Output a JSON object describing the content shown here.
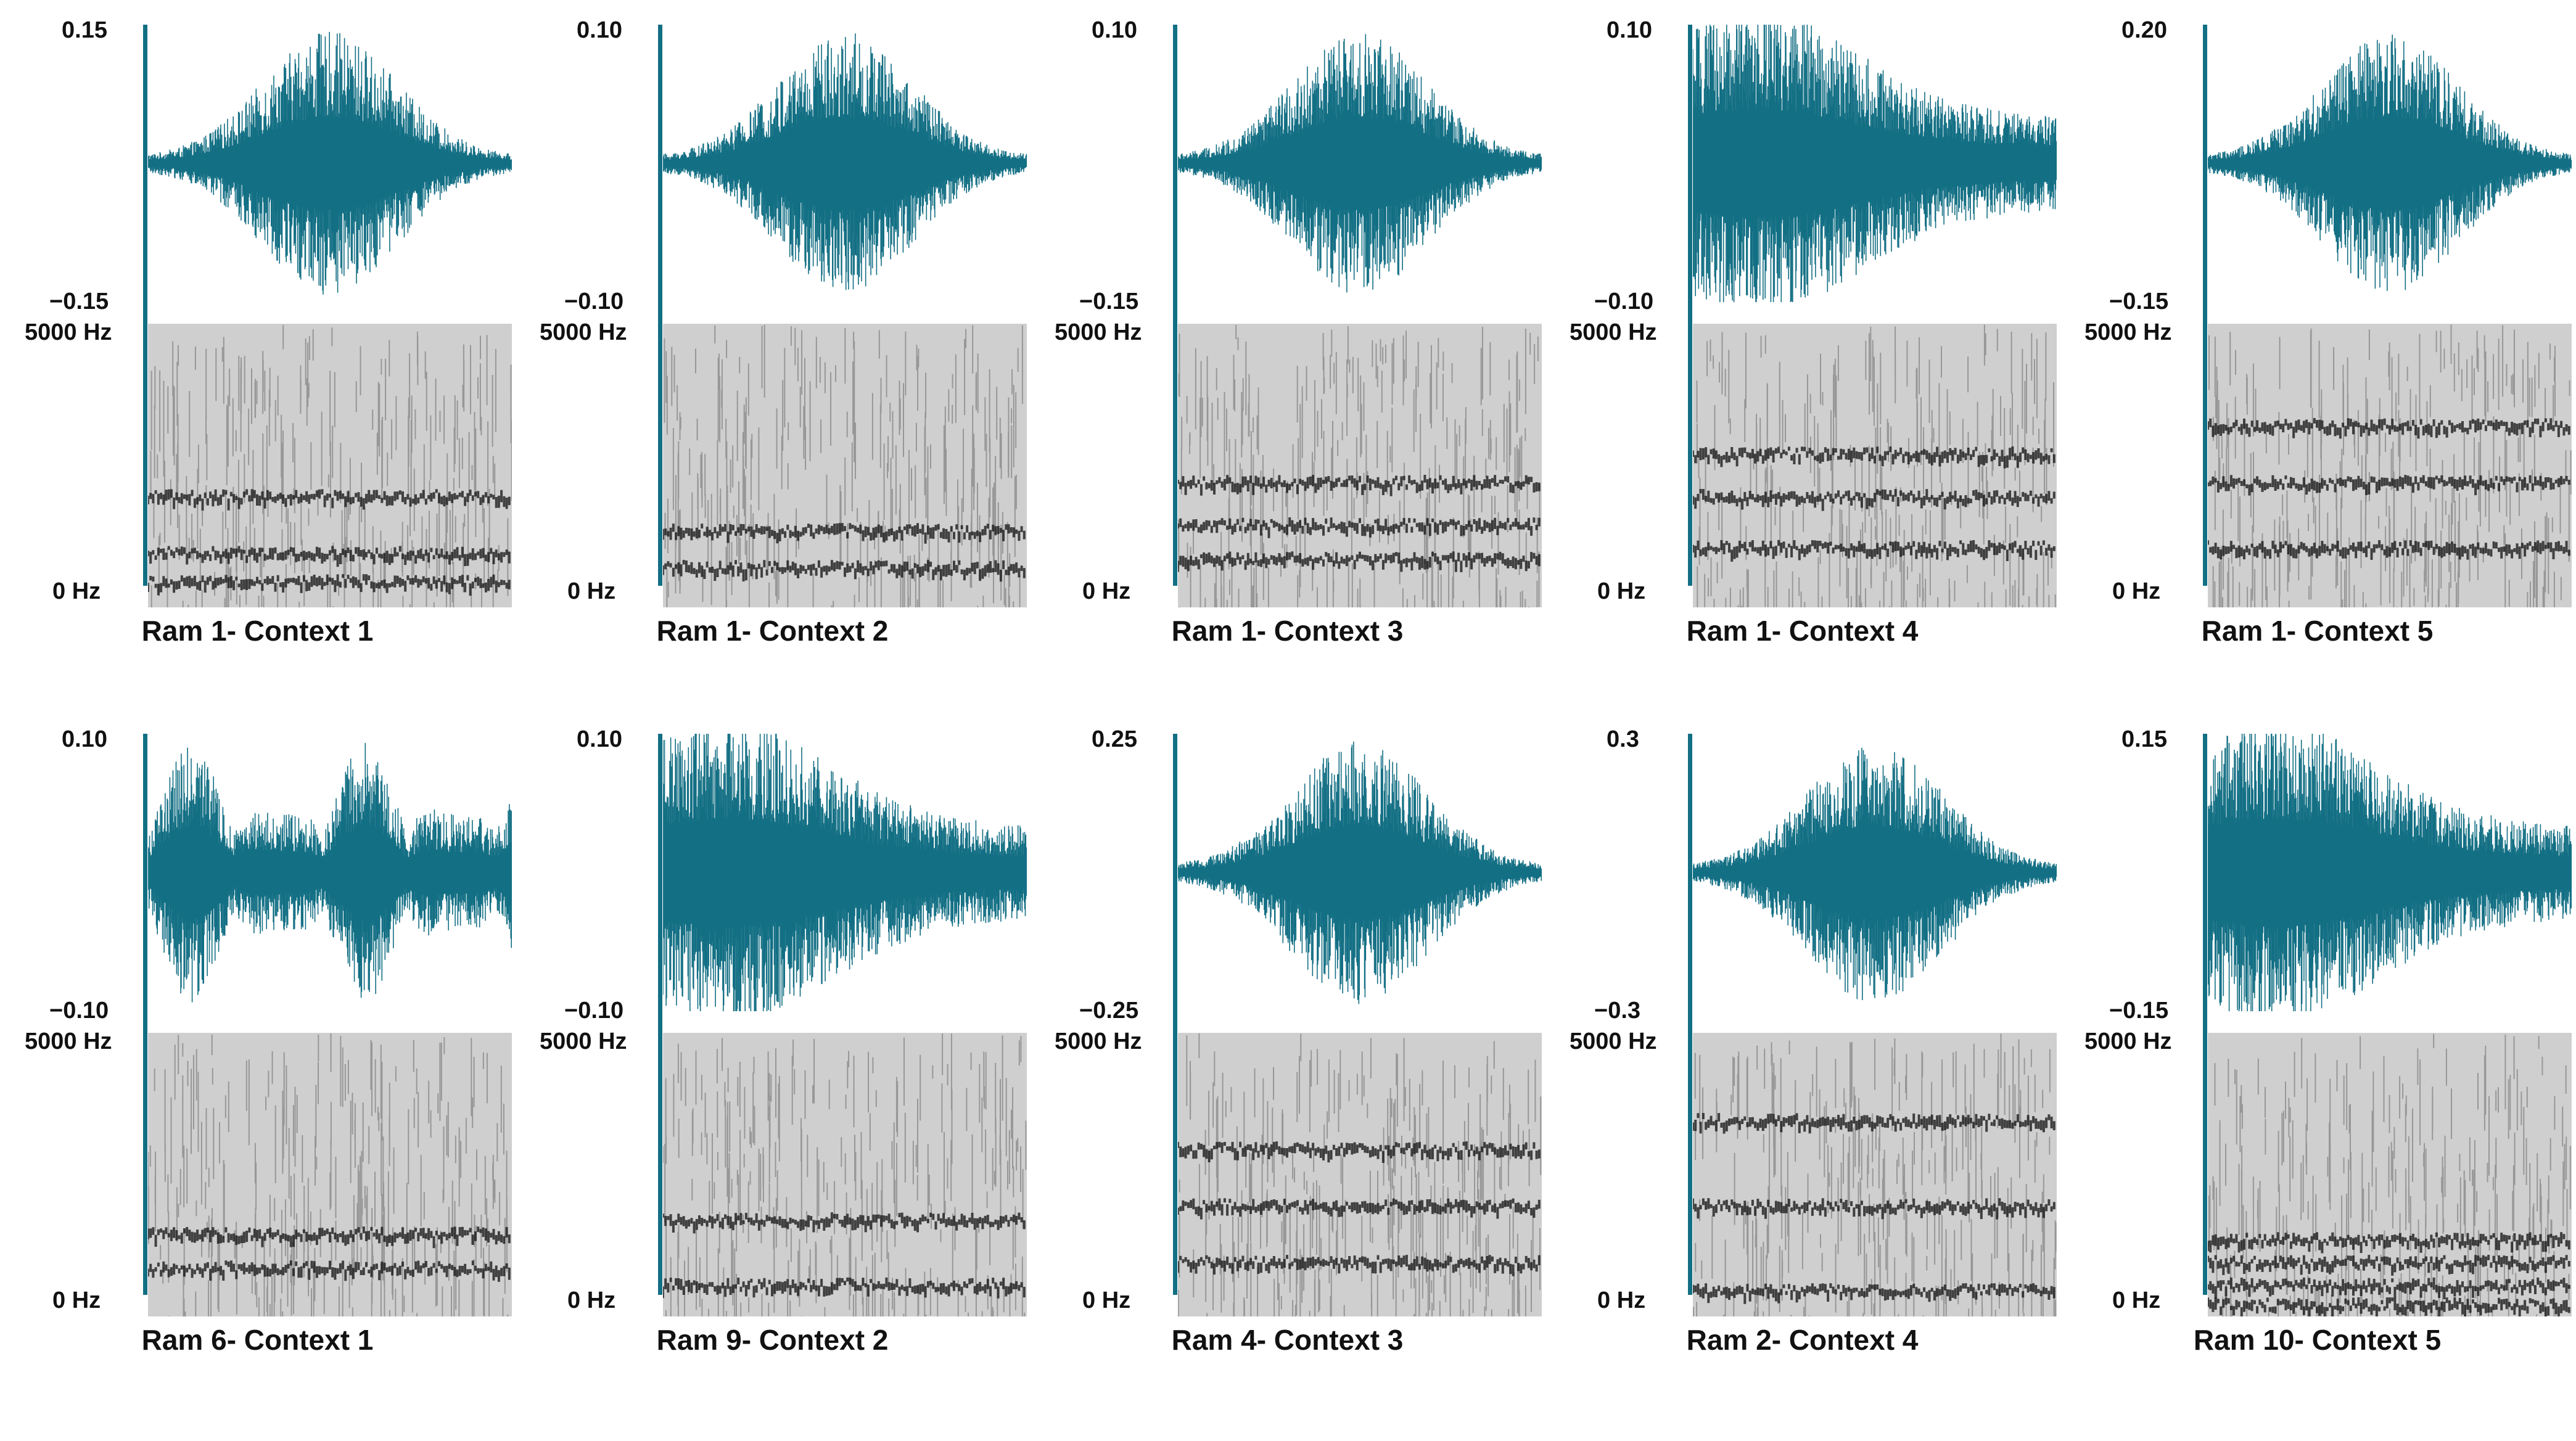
{
  "panels": [
    {
      "caption": "Ram 1- Context 1",
      "y_max": "0.15",
      "y_min": "−0.15",
      "freq_high": "5000 Hz",
      "freq_low": "0 Hz",
      "envelope": "center",
      "bands": [
        0.6,
        0.8,
        0.9
      ]
    },
    {
      "caption": "Ram 1- Context 2",
      "y_max": "0.10",
      "y_min": "−0.10",
      "freq_high": "5000 Hz",
      "freq_low": "0 Hz",
      "envelope": "center",
      "bands": [
        0.72,
        0.85
      ]
    },
    {
      "caption": "Ram 1- Context 3",
      "y_max": "0.10",
      "y_min": "−0.15",
      "freq_high": "5000 Hz",
      "freq_low": "0 Hz",
      "envelope": "center",
      "bands": [
        0.55,
        0.7,
        0.82
      ]
    },
    {
      "caption": "Ram 1- Context 4",
      "y_max": "0.10",
      "y_min": "−0.10",
      "freq_high": "5000 Hz",
      "freq_low": "0 Hz",
      "envelope": "early",
      "bands": [
        0.45,
        0.6,
        0.78
      ]
    },
    {
      "caption": "Ram 1- Context 5",
      "y_max": "0.20",
      "y_min": "−0.15",
      "freq_high": "5000 Hz",
      "freq_low": "0 Hz",
      "envelope": "center",
      "bands": [
        0.35,
        0.55,
        0.78
      ]
    },
    {
      "caption": "Ram 6- Context 1",
      "y_max": "0.10",
      "y_min": "−0.10",
      "freq_high": "5000 Hz",
      "freq_low": "0 Hz",
      "envelope": "bursts",
      "bands": [
        0.7,
        0.82
      ]
    },
    {
      "caption": "Ram 9- Context 2",
      "y_max": "0.10",
      "y_min": "−0.10",
      "freq_high": "5000 Hz",
      "freq_low": "0 Hz",
      "envelope": "early",
      "bands": [
        0.65,
        0.88
      ]
    },
    {
      "caption": "Ram 4- Context 3",
      "y_max": "0.25",
      "y_min": "−0.25",
      "freq_high": "5000 Hz",
      "freq_low": "0 Hz",
      "envelope": "center",
      "bands": [
        0.4,
        0.6,
        0.8
      ]
    },
    {
      "caption": "Ram 2- Context 4",
      "y_max": "0.3",
      "y_min": "−0.3",
      "freq_high": "5000 Hz",
      "freq_low": "0 Hz",
      "envelope": "center",
      "bands": [
        0.3,
        0.6,
        0.9
      ]
    },
    {
      "caption": "Ram 10- Context 5",
      "y_max": "0.15",
      "y_min": "−0.15",
      "freq_high": "5000 Hz",
      "freq_low": "0 Hz",
      "envelope": "early",
      "bands": [
        0.72,
        0.8,
        0.88,
        0.95
      ]
    }
  ],
  "colors": {
    "waveform": "#136f84",
    "waveform_light": "#4aa3b5",
    "axis": "#136f84",
    "spectrogram_bg": "#cfcfcf",
    "spectrogram_dark": "#111111"
  }
}
